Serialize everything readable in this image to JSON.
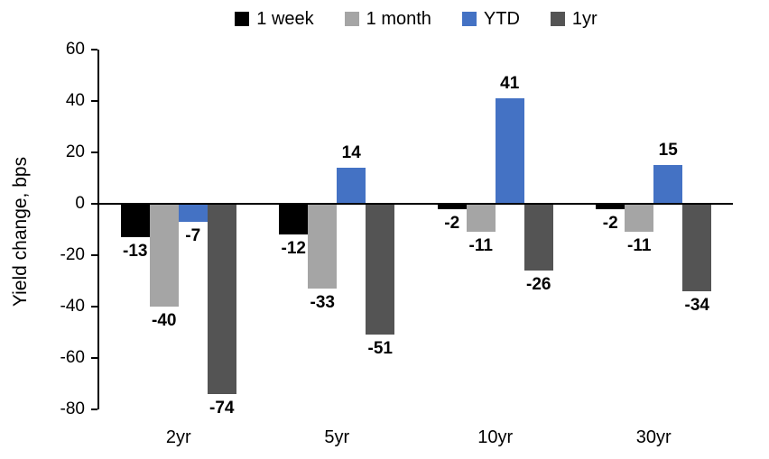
{
  "chart_data": {
    "type": "bar",
    "title": "",
    "xlabel": "",
    "ylabel": "Yield change, bps",
    "categories": [
      "2yr",
      "5yr",
      "10yr",
      "30yr"
    ],
    "series": [
      {
        "name": "1 week",
        "color": "#000000",
        "values": [
          -13,
          -12,
          -2,
          -2
        ]
      },
      {
        "name": "1 month",
        "color": "#A5A5A5",
        "values": [
          -40,
          -33,
          -11,
          -11
        ]
      },
      {
        "name": "YTD",
        "color": "#4472C4",
        "values": [
          -7,
          14,
          41,
          15
        ]
      },
      {
        "name": "1yr",
        "color": "#545454",
        "values": [
          -74,
          -51,
          -26,
          -34
        ]
      }
    ],
    "ylim": [
      -80,
      60
    ],
    "yticks": [
      60,
      40,
      20,
      0,
      -20,
      -40,
      -60,
      -80
    ],
    "grid": false,
    "legend_position": "top",
    "data_labels": true,
    "axis_color": "#000000"
  }
}
